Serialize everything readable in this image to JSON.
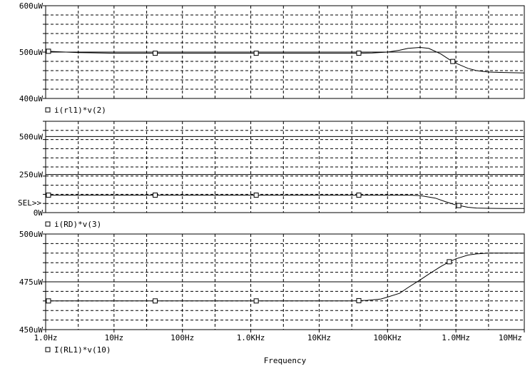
{
  "chart_data": [
    {
      "type": "line",
      "title": "",
      "xlabel": "Frequency",
      "ylabel": "",
      "x_scale": "log",
      "xlim": [
        1,
        10000000
      ],
      "ylim": [
        400,
        600
      ],
      "y_unit": "uW",
      "ytick_labels": [
        "600uW",
        "500uW",
        "400uW"
      ],
      "ytick_values": [
        600,
        500,
        400
      ],
      "grid": true,
      "legend": "bottom-left",
      "series": [
        {
          "name": "i(rl1)*v(2)",
          "x": [
            1,
            3,
            10,
            30,
            100,
            300,
            1000,
            3000,
            10000,
            30000,
            60000,
            100000,
            150000,
            200000,
            300000,
            400000,
            600000,
            800000,
            1000000,
            1500000,
            2000000,
            3000000,
            5000000,
            10000000
          ],
          "values": [
            502,
            499,
            497.5,
            497.5,
            497.5,
            497.5,
            497.5,
            497.5,
            497.5,
            497.5,
            498,
            500,
            504,
            508,
            510,
            508,
            496,
            484,
            476,
            465,
            460,
            457,
            456,
            455
          ],
          "marker_x": [
            1.1,
            40,
            1200,
            38000,
            900000
          ]
        }
      ]
    },
    {
      "type": "line",
      "title": "",
      "xlabel": "",
      "ylabel": "",
      "x_scale": "log",
      "xlim": [
        1,
        10000000
      ],
      "ylim": [
        0,
        600
      ],
      "y_unit": "uW",
      "ytick_labels": [
        "500uW",
        "250uW",
        "0W"
      ],
      "ytick_values": [
        500,
        250,
        0
      ],
      "selected_label": "SEL>>",
      "grid": true,
      "legend": "bottom-left",
      "series": [
        {
          "name": "i(RD)*v(3)",
          "x": [
            1,
            100,
            10000,
            100000,
            200000,
            300000,
            500000,
            700000,
            1000000,
            1500000,
            2000000,
            3000000,
            5000000,
            10000000
          ],
          "values": [
            115,
            115,
            115,
            115,
            115,
            112,
            95,
            72,
            50,
            35,
            30,
            28,
            27,
            27
          ],
          "marker_x": [
            1.1,
            40,
            1200,
            38000,
            1100000
          ]
        }
      ]
    },
    {
      "type": "line",
      "title": "",
      "xlabel": "Frequency",
      "ylabel": "",
      "x_scale": "log",
      "xlim": [
        1,
        10000000
      ],
      "ylim": [
        450,
        500
      ],
      "y_unit": "uW",
      "ytick_labels": [
        "500uW",
        "475uW",
        "450uW"
      ],
      "ytick_values": [
        500,
        475,
        450
      ],
      "xtick_labels": [
        "1.0Hz",
        "10Hz",
        "100Hz",
        "1.0KHz",
        "10KHz",
        "100KHz",
        "1.0MHz",
        "10MHz"
      ],
      "xtick_values": [
        1,
        10,
        100,
        1000,
        10000,
        100000,
        1000000,
        10000000
      ],
      "grid": true,
      "legend": "bottom-left",
      "series": [
        {
          "name": "I(RL1)*v(10)",
          "x": [
            1,
            1000,
            30000,
            50000,
            80000,
            100000,
            150000,
            200000,
            300000,
            400000,
            600000,
            800000,
            1000000,
            1500000,
            2000000,
            3000000,
            5000000,
            10000000
          ],
          "values": [
            465,
            465,
            465,
            465.3,
            466,
            467,
            469,
            472,
            476,
            479,
            483,
            485.5,
            487,
            489,
            489.6,
            490,
            490,
            490
          ],
          "marker_x": [
            1.1,
            40,
            1200,
            38000,
            800000
          ]
        }
      ]
    }
  ]
}
